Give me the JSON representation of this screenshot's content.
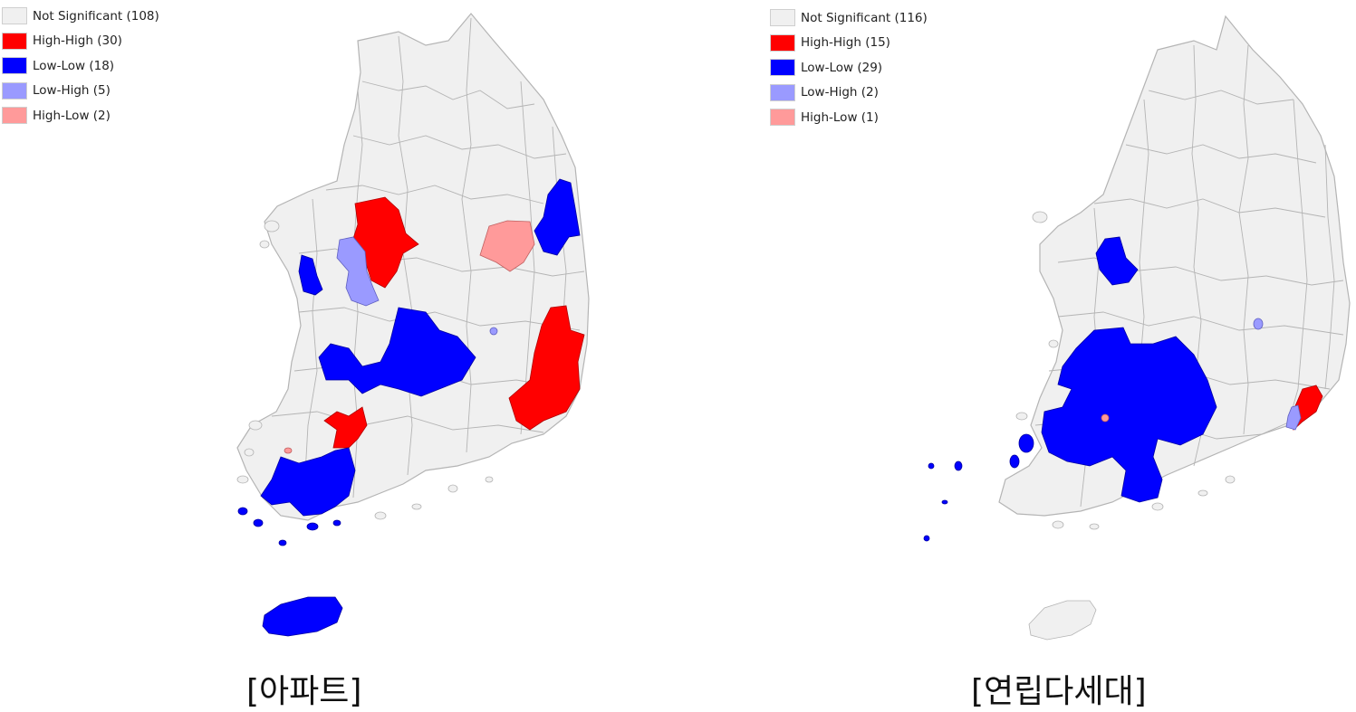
{
  "colors": {
    "not_significant": "#f0f0f0",
    "high_high": "#ff0000",
    "low_low": "#0000ff",
    "low_high": "#9a9aff",
    "high_low": "#ff9a9a",
    "border": "#b4b4b4"
  },
  "maps": [
    {
      "caption": "[아파트]",
      "legend": [
        {
          "label": "Not Significant (108)",
          "category": "not_significant"
        },
        {
          "label": "High-High (30)",
          "category": "high_high"
        },
        {
          "label": "Low-Low (18)",
          "category": "low_low"
        },
        {
          "label": "Low-High (5)",
          "category": "low_high"
        },
        {
          "label": "High-Low (2)",
          "category": "high_low"
        }
      ]
    },
    {
      "caption": "[연립다세대]",
      "legend": [
        {
          "label": "Not Significant (116)",
          "category": "not_significant"
        },
        {
          "label": "High-High (15)",
          "category": "high_high"
        },
        {
          "label": "Low-Low (29)",
          "category": "low_low"
        },
        {
          "label": "Low-High (2)",
          "category": "low_high"
        },
        {
          "label": "High-Low (1)",
          "category": "high_low"
        }
      ]
    }
  ]
}
